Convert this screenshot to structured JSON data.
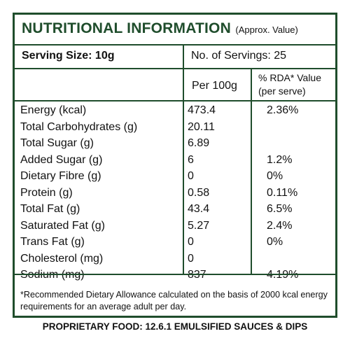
{
  "title": "NUTRITIONAL INFORMATION",
  "title_note": "(Approx. Value)",
  "serving_size": "Serving Size: 10g",
  "servings": "No. of Servings: 25",
  "col_per100": "Per 100g",
  "col_rda_line1": "% RDA* Value",
  "col_rda_line2": "(per serve)",
  "rows": [
    {
      "name": "Energy (kcal)",
      "per100": "473.4",
      "rda": "2.36%"
    },
    {
      "name": "Total Carbohydrates (g)",
      "per100": "20.11",
      "rda": ""
    },
    {
      "name": "Total Sugar (g)",
      "per100": "6.89",
      "rda": ""
    },
    {
      "name": "Added Sugar (g)",
      "per100": "6",
      "rda": "1.2%"
    },
    {
      "name": "Dietary Fibre (g)",
      "per100": "0",
      "rda": "0%"
    },
    {
      "name": "Protein (g)",
      "per100": "0.58",
      "rda": "0.11%"
    },
    {
      "name": "Total Fat (g)",
      "per100": "43.4",
      "rda": "6.5%"
    },
    {
      "name": "Saturated Fat (g)",
      "per100": "5.27",
      "rda": "2.4%"
    },
    {
      "name": "Trans Fat (g)",
      "per100": "0",
      "rda": "0%"
    },
    {
      "name": "Cholesterol (mg)",
      "per100": "0",
      "rda": ""
    },
    {
      "name": "Sodium  (mg)",
      "per100": "837",
      "rda": "4.19%"
    }
  ],
  "footnote": "*Recommended Dietary Allowance calculated on the basis of 2000 kcal energy requirements for an average adult per day.",
  "proprietary": "PROPRIETARY FOOD: 12.6.1 EMULSIFIED SAUCES & DIPS",
  "colors": {
    "border": "#1f4d2c",
    "title": "#1f4d2c",
    "text": "#111111"
  }
}
